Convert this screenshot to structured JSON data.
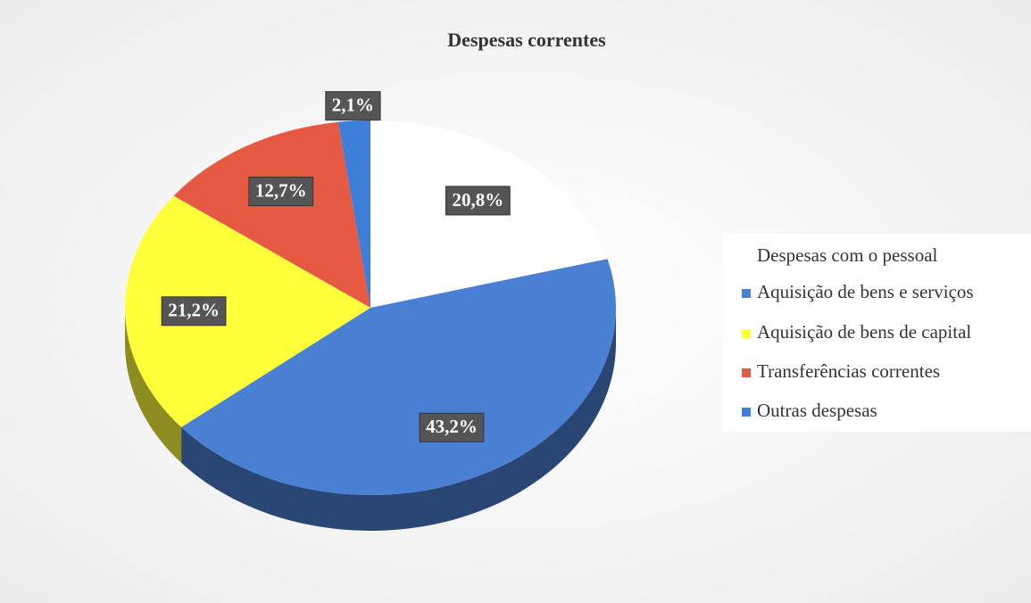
{
  "chart_data": {
    "type": "pie",
    "title": "Despesas correntes",
    "categories": [
      "Despesas com o pessoal",
      "Aquisição de bens e serviços",
      "Aquisição de bens de capital",
      "Transferências correntes",
      "Outras despesas"
    ],
    "values": [
      20.8,
      43.2,
      21.2,
      12.7,
      2.1
    ],
    "value_labels": [
      "20,8%",
      "43,2%",
      "21,2%",
      "12,7%",
      "2,1%"
    ],
    "colors": [
      "#ffffff",
      "#4a80d4",
      "#ffff3a",
      "#e65a44",
      "#3d7fd8"
    ],
    "legend": "right"
  }
}
